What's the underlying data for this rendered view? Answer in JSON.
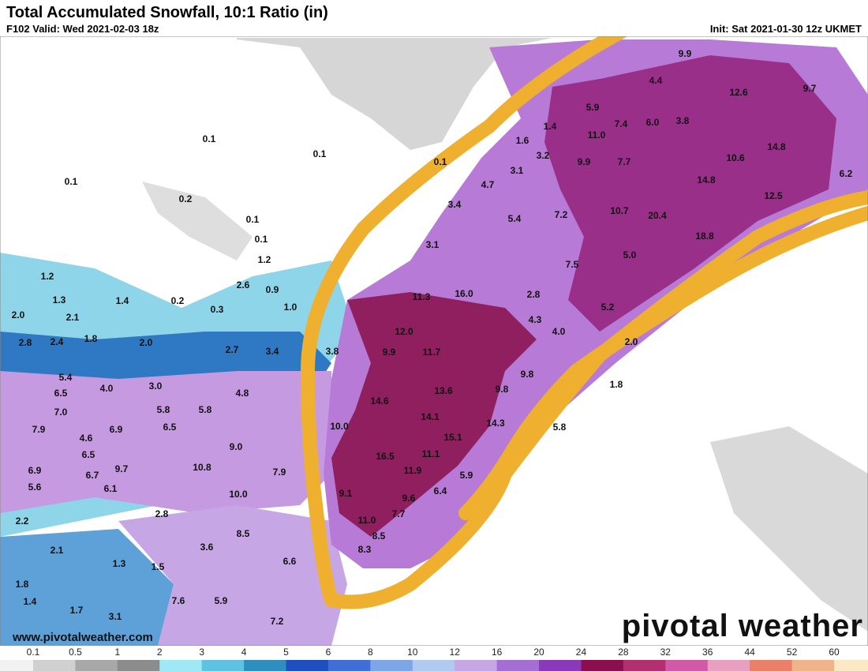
{
  "header": {
    "title": "Total Accumulated Snowfall, 10:1 Ratio (in)",
    "valid": "F102 Valid: Wed 2021-02-03 18z",
    "init": "Init: Sat 2021-01-30 12z UKMET"
  },
  "map": {
    "labels": [
      "0.1",
      "0.1",
      "0.1",
      "0.2",
      "0.1",
      "0.1",
      "1.2",
      "1.2",
      "1.3",
      "1.4",
      "0.2",
      "0.3",
      "2.6",
      "0.9",
      "1.0",
      "2.0",
      "2.1",
      "2.8",
      "2.4",
      "1.8",
      "2.0",
      "2.7",
      "3.4",
      "3.8",
      "5.4",
      "4.0",
      "3.0",
      "4.8",
      "6.5",
      "7.0",
      "5.8",
      "5.8",
      "7.9",
      "4.6",
      "6.9",
      "6.5",
      "6.5",
      "9.0",
      "10.8",
      "6.9",
      "6.7",
      "9.7",
      "5.6",
      "6.1",
      "7.9",
      "10.0",
      "2.2",
      "2.8",
      "8.5",
      "3.6",
      "2.1",
      "1.3",
      "1.5",
      "6.6",
      "1.8",
      "1.4",
      "7.6",
      "5.9",
      "1.7",
      "3.1",
      "7.2",
      "9.9",
      "4.4",
      "12.6",
      "9.7",
      "5.9",
      "7.4",
      "6.0",
      "3.8",
      "1.4",
      "1.6",
      "11.0",
      "14.8",
      "3.2",
      "9.9",
      "7.7",
      "10.6",
      "3.1",
      "14.8",
      "6.2",
      "4.7",
      "5.4",
      "7.2",
      "10.7",
      "20.4",
      "12.5",
      "3.4",
      "18.8",
      "3.1",
      "5.0",
      "7.5",
      "11.3",
      "16.0",
      "2.8",
      "5.2",
      "4.3",
      "12.0",
      "4.0",
      "2.0",
      "9.9",
      "11.7",
      "9.8",
      "13.6",
      "9.8",
      "1.8",
      "14.6",
      "14.1",
      "14.3",
      "5.8",
      "15.1",
      "16.5",
      "11.1",
      "11.9",
      "5.9",
      "9.1",
      "9.6",
      "6.4",
      "11.0",
      "7.7",
      "8.5",
      "8.3",
      "0.1",
      "10.0"
    ]
  },
  "colorbar": {
    "ticks": [
      "0.1",
      "0.5",
      "1",
      "2",
      "3",
      "4",
      "5",
      "6",
      "8",
      "10",
      "12",
      "16",
      "20",
      "24",
      "28",
      "32",
      "36",
      "44",
      "52",
      "60"
    ]
  },
  "footer": {
    "url": "www.pivotalweather.com",
    "brand": "pivotal weather"
  }
}
